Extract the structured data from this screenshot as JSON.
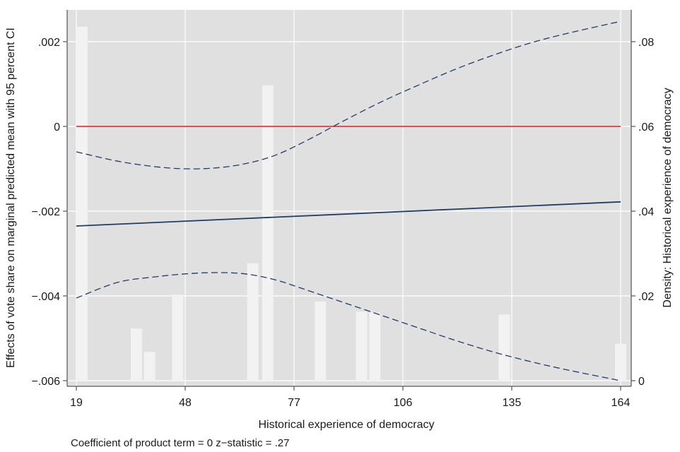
{
  "chart_data": {
    "type": "line",
    "xlabel": "Historical experience of democracy",
    "ylabel": "Effects of vote share on marginal predicted mean with 95 percent CI",
    "y2label": "Density: Historical experience of democracy",
    "note": "Coefficient of product term = 0 z−statistic = .27",
    "xlim": [
      19,
      164
    ],
    "ylim": [
      -0.006,
      0.002
    ],
    "y2lim": [
      0,
      0.08
    ],
    "x_ticks": [
      19,
      48,
      77,
      106,
      135,
      164
    ],
    "y_ticks": [
      {
        "value": 0.002,
        "label": ".002"
      },
      {
        "value": 0,
        "label": "0"
      },
      {
        "value": -0.002,
        "label": "−.002"
      },
      {
        "value": -0.004,
        "label": "−.004"
      },
      {
        "value": -0.006,
        "label": "−.006"
      }
    ],
    "y2_ticks": [
      {
        "value": 0.08,
        "label": ".08"
      },
      {
        "value": 0.06,
        "label": ".06"
      },
      {
        "value": 0.04,
        "label": ".04"
      },
      {
        "value": 0.02,
        "label": ".02"
      },
      {
        "value": 0,
        "label": "0"
      }
    ],
    "grid": true,
    "colors": {
      "plot_bg": "#e0e0e0",
      "grid": "#ffffff",
      "bars": "#f2f2f2",
      "estimate": "#1f3d66",
      "ci": "#1f3d66",
      "reference": "#e41a1c"
    },
    "reference_line": 0,
    "estimate": {
      "x": [
        19,
        164
      ],
      "y": [
        -0.00235,
        -0.00178
      ]
    },
    "ci_upper": {
      "x": [
        19,
        30,
        40,
        48,
        56,
        64,
        72,
        80,
        90,
        100,
        110,
        120,
        130,
        140,
        150,
        164
      ],
      "y": [
        -0.0006,
        -0.00082,
        -0.00095,
        -0.001,
        -0.00098,
        -0.00088,
        -0.00068,
        -0.00035,
        0.00012,
        0.00057,
        0.00097,
        0.00135,
        0.00168,
        0.00197,
        0.0022,
        0.00248
      ]
    },
    "ci_lower": {
      "x": [
        19,
        30,
        40,
        48,
        56,
        64,
        72,
        80,
        90,
        100,
        110,
        120,
        130,
        140,
        150,
        164
      ],
      "y": [
        -0.00405,
        -0.00368,
        -0.00355,
        -0.00348,
        -0.00345,
        -0.00348,
        -0.00362,
        -0.00385,
        -0.00415,
        -0.00445,
        -0.00475,
        -0.00505,
        -0.00532,
        -0.00555,
        -0.00575,
        -0.006
      ]
    },
    "density_bars": {
      "x": [
        20.5,
        35,
        38.5,
        46,
        66,
        70,
        84,
        95,
        98.5,
        133,
        164
      ],
      "height": [
        0.0835,
        0.0123,
        0.0068,
        0.0203,
        0.0277,
        0.0697,
        0.0187,
        0.0163,
        0.0161,
        0.0156,
        0.0087
      ],
      "width": 3
    }
  }
}
